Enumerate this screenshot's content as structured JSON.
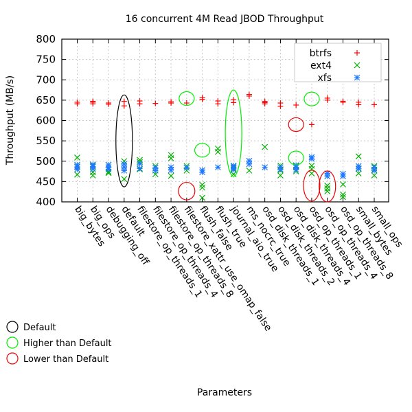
{
  "chart_data": {
    "type": "scatter",
    "title": "16 concurrent 4M Read JBOD Throughput",
    "xlabel": "Parameters",
    "ylabel": "Throughput (MB/s)",
    "ylim": [
      400,
      800
    ],
    "yticks": [
      "400",
      "450",
      "500",
      "550",
      "600",
      "650",
      "700",
      "750",
      "800"
    ],
    "grid": true,
    "legend_position": "top-right",
    "categories": [
      "big_bytes",
      "big_ops",
      "debugging_off",
      "default",
      "filestore_op_threads_1",
      "filestore_op_threads_4",
      "filestore_op_threads_8",
      "filestore_xattr_use_omap_false",
      "flush_false",
      "flush_true",
      "journal_aio_true",
      "ms_nocrc_true",
      "osd_disk_threads_1",
      "osd_disk_threads_2",
      "osd_disk_threads_4",
      "osd_op_threads_1",
      "osd_op_threads_4",
      "osd_op_threads_8",
      "small_bytes",
      "small_ops"
    ],
    "series": [
      {
        "name": "btrfs",
        "marker": "+",
        "color": "#ff0000",
        "values": [
          [
            641,
            645
          ],
          [
            641,
            645,
            647
          ],
          [
            640,
            643
          ],
          [
            636,
            647
          ],
          [
            641,
            648
          ],
          [
            642
          ],
          [
            643,
            646
          ],
          [
            643
          ],
          [
            652,
            656
          ],
          [
            641,
            648
          ],
          [
            644,
            651
          ],
          [
            660,
            664
          ],
          [
            641,
            644,
            647
          ],
          [
            635,
            643
          ],
          [
            638
          ],
          [
            590
          ],
          [
            650,
            655
          ],
          [
            645,
            647
          ],
          [
            639,
            645
          ],
          [
            639
          ]
        ]
      },
      {
        "name": "ext4",
        "marker": "x",
        "color": "#00b000",
        "values": [
          [
            467,
            487,
            509
          ],
          [
            465,
            473,
            490
          ],
          [
            471,
            474,
            491
          ],
          [
            456,
            500
          ],
          [
            480,
            498,
            503
          ],
          [
            468,
            488
          ],
          [
            464,
            507,
            515
          ],
          [
            477,
            488
          ],
          [
            410,
            435,
            442
          ],
          [
            523,
            531
          ],
          [
            468,
            482,
            488
          ],
          [
            477
          ],
          [
            535
          ],
          [
            465,
            477,
            489
          ],
          [
            475,
            488
          ],
          [
            470,
            481,
            489
          ],
          [
            426,
            433,
            440
          ],
          [
            412,
            418,
            443
          ],
          [
            470,
            482,
            512
          ],
          [
            465,
            479,
            488
          ]
        ]
      },
      {
        "name": "xfs",
        "marker": "*",
        "color": "#1e78ff",
        "values": [
          [
            480,
            486,
            491
          ],
          [
            481,
            487,
            492
          ],
          [
            480,
            485,
            491
          ],
          [
            477,
            485,
            493
          ],
          [
            482,
            494
          ],
          [
            477,
            484
          ],
          [
            478,
            485
          ],
          [
            484
          ],
          [
            473,
            478
          ],
          [
            485
          ],
          [
            479,
            485,
            489
          ],
          [
            493,
            501
          ],
          [
            485
          ],
          [
            480,
            485
          ],
          [
            479,
            485,
            490
          ],
          [
            506,
            510
          ],
          [
            463,
            470
          ],
          [
            463,
            469
          ],
          [
            481,
            488
          ],
          [
            477,
            485
          ]
        ]
      }
    ],
    "annotations": [
      {
        "category": "default",
        "type": "ellipse",
        "meaning": "Default",
        "color": "#000000",
        "range": [
          437,
          663
        ]
      },
      {
        "category": "filestore_xattr_use_omap_false",
        "type": "circle",
        "meaning": "Higher than Default",
        "color": "#00ee00",
        "value": 654
      },
      {
        "category": "filestore_xattr_use_omap_false",
        "type": "ellipse",
        "meaning": "Lower than Default",
        "color": "#ee0000",
        "range": [
          405,
          448
        ]
      },
      {
        "category": "flush_false",
        "type": "circle",
        "meaning": "Higher than Default",
        "color": "#00ee00",
        "value": 527
      },
      {
        "category": "journal_aio_true",
        "type": "ellipse",
        "meaning": "Higher than Default",
        "color": "#00ee00",
        "range": [
          463,
          675
        ]
      },
      {
        "category": "osd_disk_threads_4",
        "type": "circle",
        "meaning": "Lower than Default",
        "color": "#ee0000",
        "value": 590
      },
      {
        "category": "osd_disk_threads_4",
        "type": "circle",
        "meaning": "Higher than Default",
        "color": "#00ee00",
        "value": 508
      },
      {
        "category": "osd_op_threads_1",
        "type": "circle",
        "meaning": "Higher than Default",
        "color": "#00ee00",
        "value": 653
      },
      {
        "category": "osd_op_threads_1",
        "type": "ellipse",
        "meaning": "Lower than Default",
        "color": "#ee0000",
        "range": [
          402,
          478
        ]
      },
      {
        "category": "osd_op_threads_4",
        "type": "ellipse",
        "meaning": "Lower than Default",
        "color": "#ee0000",
        "range": [
          400,
          476
        ]
      }
    ],
    "notes_legend": [
      {
        "label": "Default",
        "color": "#000000"
      },
      {
        "label": "Higher than Default",
        "color": "#00ee00"
      },
      {
        "label": "Lower than Default",
        "color": "#ee0000"
      }
    ]
  }
}
